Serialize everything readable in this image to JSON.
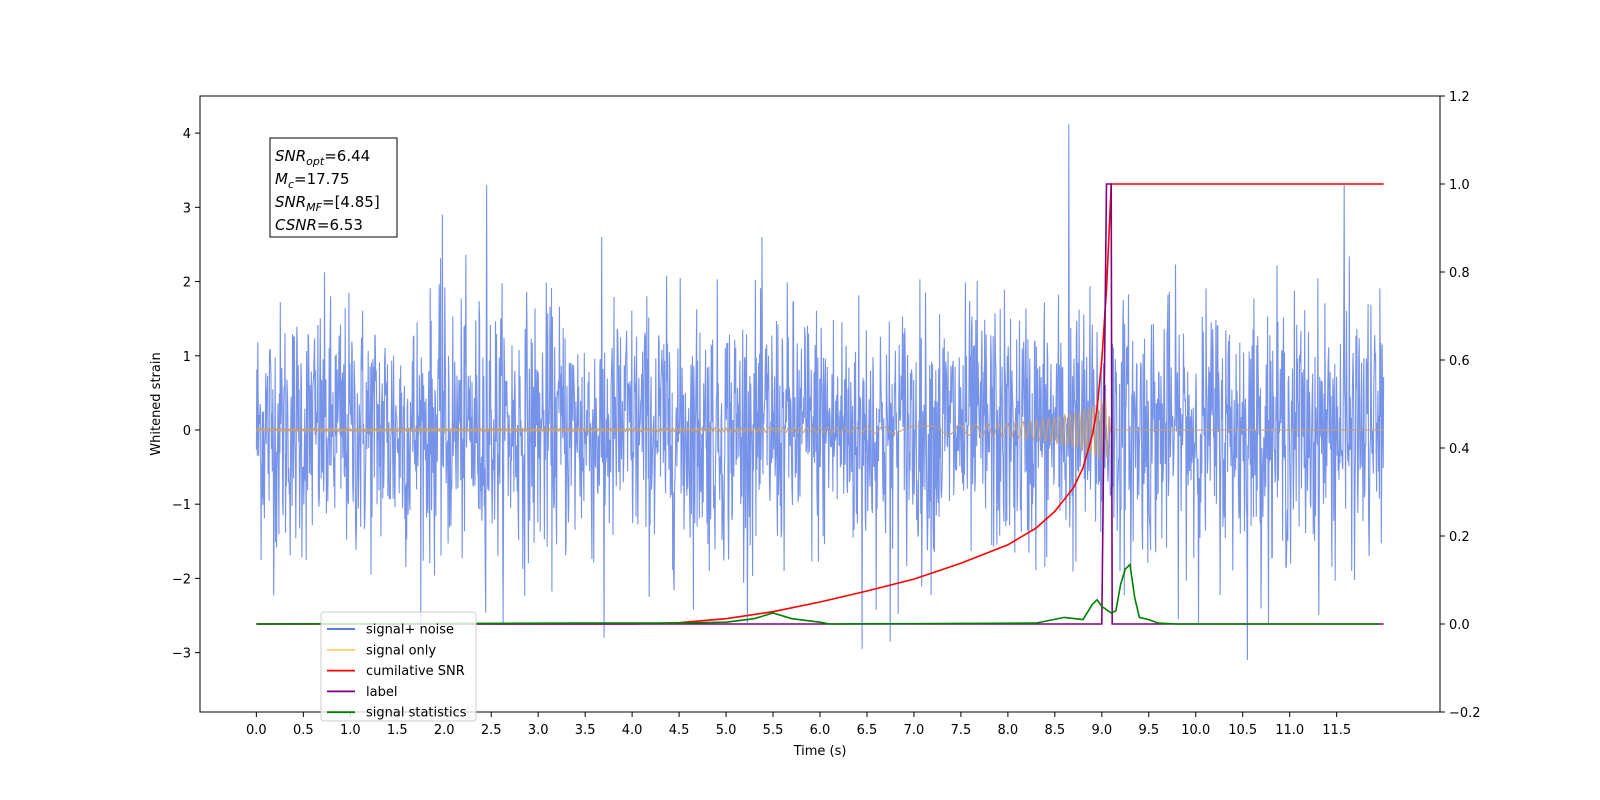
{
  "chart_data": {
    "type": "line",
    "title": "",
    "xlabel": "Time (s)",
    "ylabel": "Whitened strain",
    "y2label": "",
    "xlim": [
      -0.6,
      12.6
    ],
    "ylim": [
      -3.8,
      4.5
    ],
    "y2lim": [
      -0.2,
      1.2
    ],
    "x_ticks": [
      "0.0",
      "0.5",
      "1.0",
      "1.5",
      "2.0",
      "2.5",
      "3.0",
      "3.5",
      "4.0",
      "4.5",
      "5.0",
      "5.5",
      "6.0",
      "6.5",
      "7.0",
      "7.5",
      "8.0",
      "8.5",
      "9.0",
      "9.5",
      "10.0",
      "10.5",
      "11.0",
      "11.5"
    ],
    "y_ticks": [
      "−3",
      "−2",
      "−1",
      "0",
      "1",
      "2",
      "3",
      "4"
    ],
    "y2_ticks": [
      "−0.2",
      "0.0",
      "0.2",
      "0.4",
      "0.6",
      "0.8",
      "1.0",
      "1.2"
    ],
    "annotation": [
      {
        "var": "SNR",
        "sub": "opt",
        "value": "=6.44"
      },
      {
        "var": "M",
        "sub": "c",
        "value": "=17.75"
      },
      {
        "var": "SNR",
        "sub": "MF",
        "value": "=[4.85]"
      },
      {
        "var": "CSNR",
        "sub": "",
        "value": "=6.53"
      }
    ],
    "legend": {
      "position": "lower-left",
      "entries": [
        {
          "label": "signal+ noise",
          "color": "#4169e1"
        },
        {
          "label": "signal only",
          "color": "#ffa500"
        },
        {
          "label": "cumilative SNR",
          "color": "#ff0000"
        },
        {
          "label": "label",
          "color": "#800080"
        },
        {
          "label": "signal statistics",
          "color": "#008000"
        }
      ]
    },
    "series": [
      {
        "name": "signal+ noise",
        "axis": "left",
        "color": "#4169e1",
        "description_free": true,
        "x_range": [
          0.0,
          12.0
        ],
        "noise_std": 0.85,
        "spikes": [
          [
            8.65,
            4.12
          ],
          [
            2.45,
            3.3
          ],
          [
            1.98,
            2.9
          ],
          [
            11.58,
            3.3
          ],
          [
            10.55,
            -3.1
          ],
          [
            6.45,
            -2.95
          ],
          [
            3.7,
            -2.8
          ],
          [
            6.75,
            -2.85
          ]
        ]
      },
      {
        "name": "signal only",
        "axis": "left",
        "color": "#c8a06e",
        "x": [
          0,
          4,
          6,
          7,
          7.5,
          8,
          8.3,
          8.5,
          8.7,
          8.85,
          8.95,
          9.0,
          9.05,
          9.1
        ],
        "amplitude": [
          0.01,
          0.02,
          0.035,
          0.05,
          0.07,
          0.1,
          0.13,
          0.17,
          0.23,
          0.3,
          0.37,
          0.42,
          0.45,
          0.0
        ]
      },
      {
        "name": "cumilative SNR",
        "axis": "right",
        "color": "#ff0000",
        "x": [
          0,
          4.0,
          4.5,
          5.0,
          5.5,
          6.0,
          6.5,
          7.0,
          7.5,
          8.0,
          8.3,
          8.5,
          8.7,
          8.8,
          8.9,
          8.95,
          9.0,
          9.05,
          9.08,
          9.1,
          12.0
        ],
        "y": [
          0.0,
          0.0,
          0.003,
          0.012,
          0.028,
          0.05,
          0.075,
          0.102,
          0.138,
          0.18,
          0.218,
          0.256,
          0.31,
          0.355,
          0.43,
          0.49,
          0.6,
          0.76,
          0.9,
          1.0,
          1.0
        ]
      },
      {
        "name": "label",
        "axis": "right",
        "color": "#800080",
        "x": [
          0,
          9.0,
          9.05,
          9.1,
          9.11,
          12.0
        ],
        "y": [
          0,
          0,
          1,
          1,
          0,
          0
        ]
      },
      {
        "name": "signal statistics",
        "axis": "right",
        "color": "#008000",
        "x": [
          0,
          3.5,
          4.5,
          5.0,
          5.3,
          5.5,
          5.7,
          6.0,
          6.1,
          8.3,
          8.6,
          8.8,
          8.9,
          8.95,
          9.0,
          9.1,
          9.15,
          9.2,
          9.25,
          9.3,
          9.35,
          9.4,
          9.5,
          9.6,
          9.8,
          11.95
        ],
        "y": [
          0,
          0.002,
          0.002,
          0.004,
          0.012,
          0.025,
          0.012,
          0.004,
          0,
          0.002,
          0.015,
          0.01,
          0.045,
          0.055,
          0.04,
          0.025,
          0.03,
          0.09,
          0.125,
          0.135,
          0.06,
          0.015,
          0.01,
          0.002,
          0,
          0
        ]
      }
    ]
  }
}
